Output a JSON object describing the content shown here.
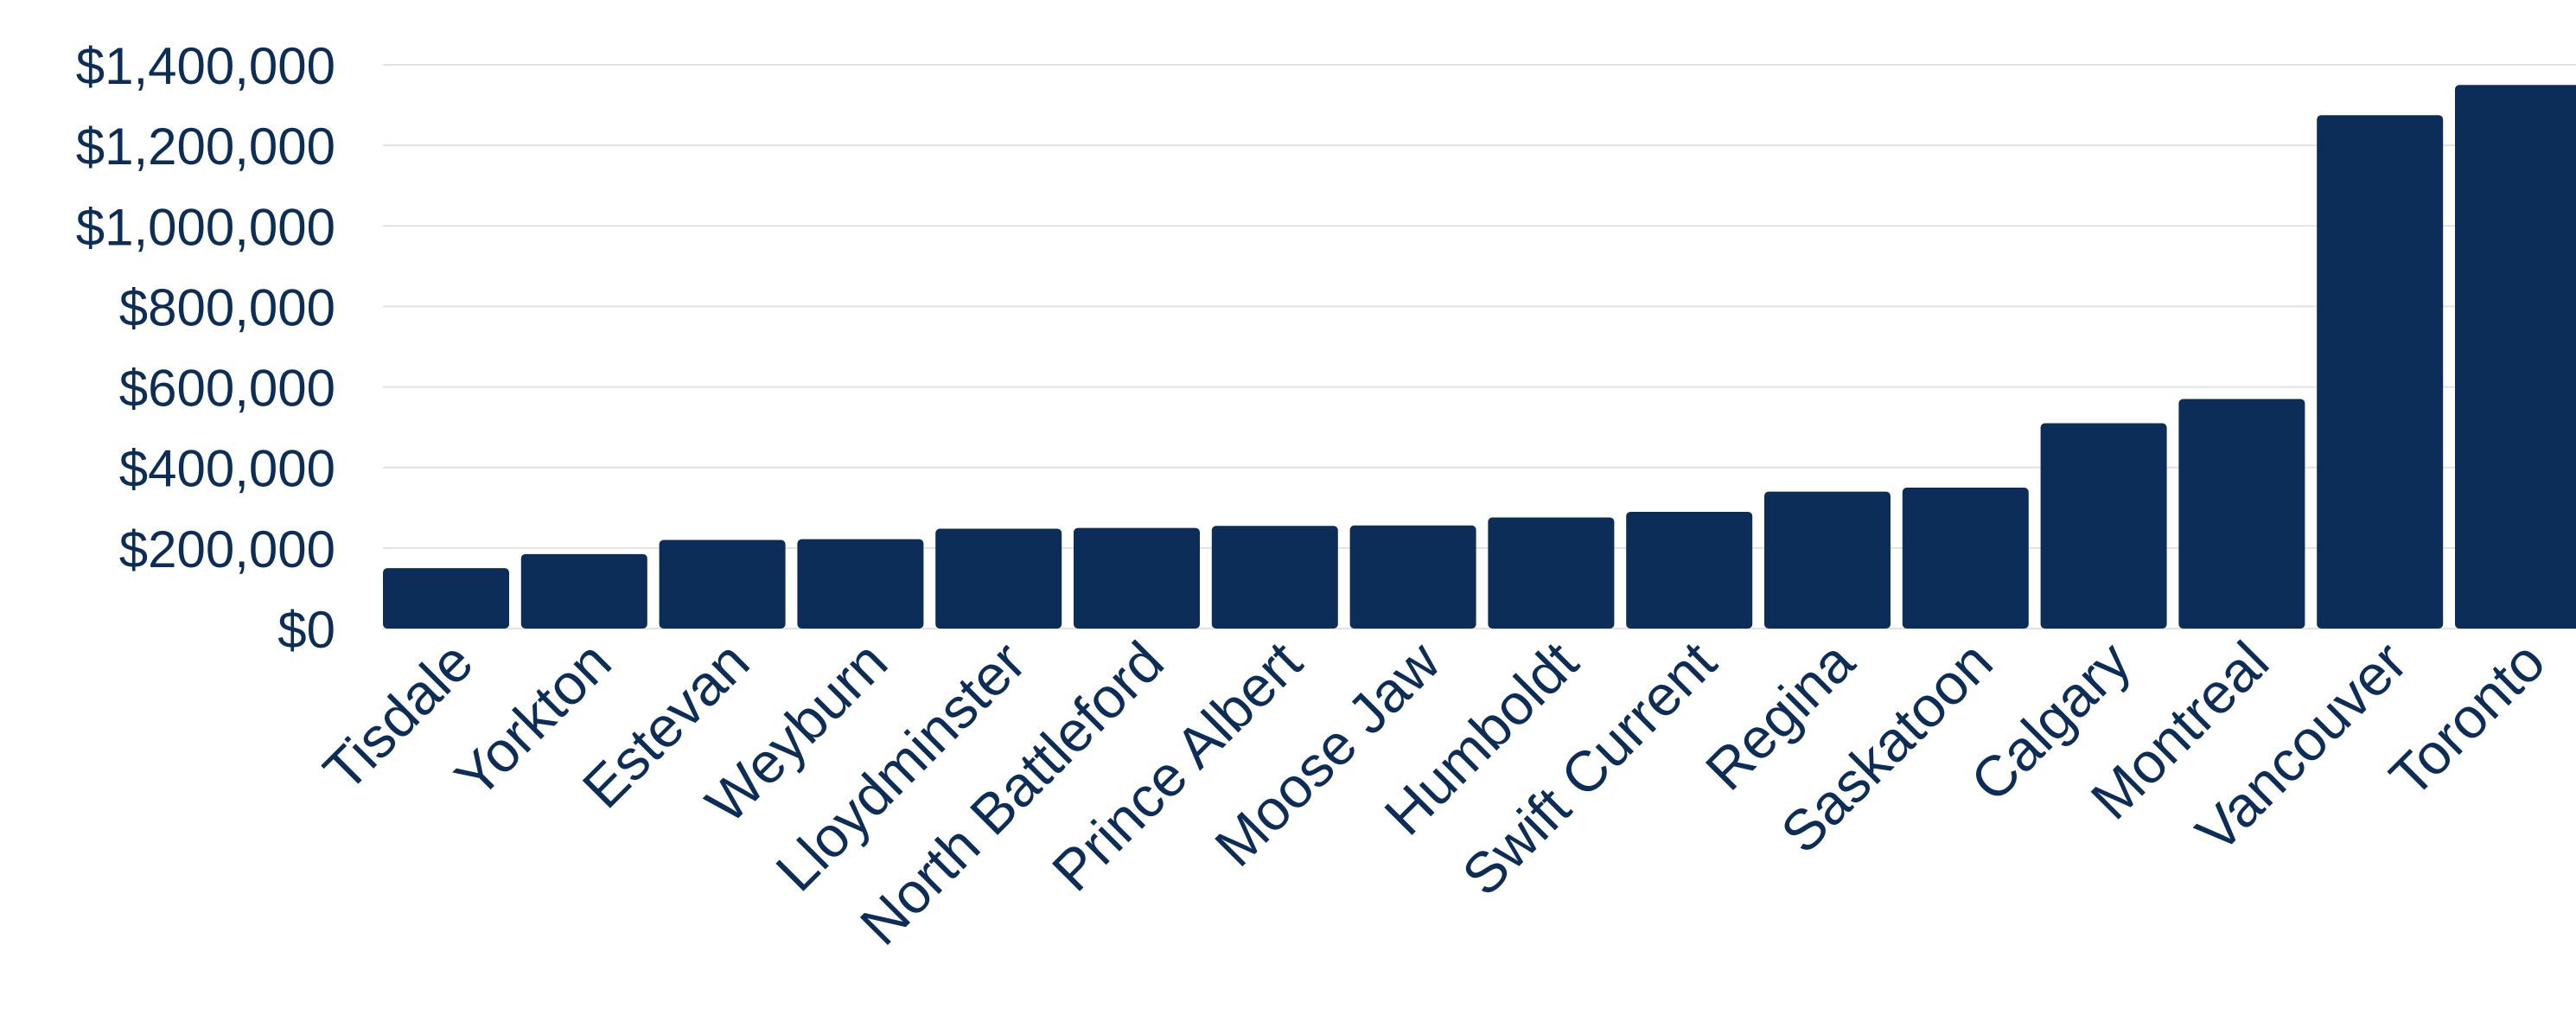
{
  "chart_data": {
    "type": "bar",
    "title": "",
    "xlabel": "",
    "ylabel": "",
    "categories": [
      "Tisdale",
      "Yorkton",
      "Estevan",
      "Weyburn",
      "Lloydminster",
      "North Battleford",
      "Prince Albert",
      "Moose Jaw",
      "Humboldt",
      "Swift Current",
      "Regina",
      "Saskatoon",
      "Calgary",
      "Montreal",
      "Vancouver",
      "Toronto"
    ],
    "values": [
      150000,
      185000,
      220000,
      222000,
      248000,
      250000,
      255000,
      256000,
      276000,
      290000,
      340000,
      350000,
      510000,
      570000,
      1275000,
      1350000
    ],
    "ylim": [
      0,
      1400000
    ],
    "yticks": [
      0,
      200000,
      400000,
      600000,
      800000,
      1000000,
      1200000,
      1400000
    ],
    "ytick_labels": [
      "$0",
      "$200,000",
      "$400,000",
      "$600,000",
      "$800,000",
      "$1,000,000",
      "$1,200,000",
      "$1,400,000"
    ],
    "grid": true,
    "legend": "none",
    "colors": {
      "bar": "#0c2d57",
      "text": "#0c2d57",
      "grid": "#e2e2e2"
    }
  }
}
